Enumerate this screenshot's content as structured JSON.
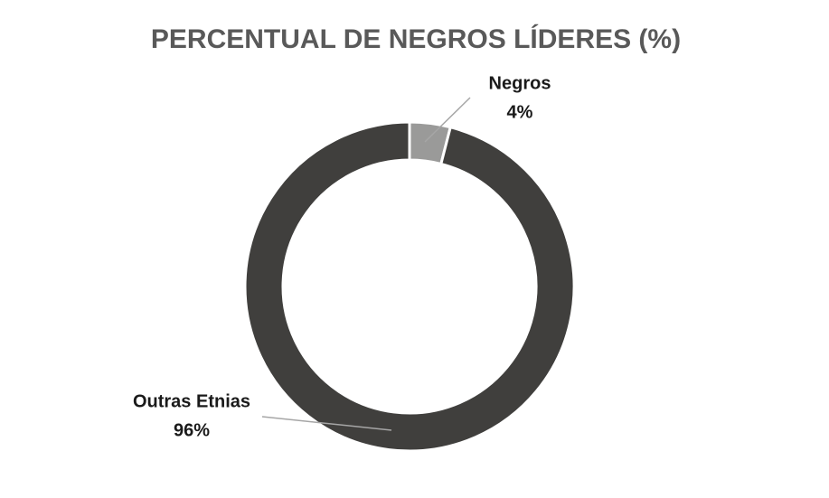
{
  "chart_data": {
    "type": "donut",
    "title": "PERCENTUAL DE NEGROS LÍDERES (%)",
    "categories": [
      "Negros",
      "Outras Etnias"
    ],
    "values": [
      4,
      96
    ],
    "value_labels": [
      "4%",
      "96%"
    ],
    "colors": [
      "#9a9a99",
      "#403f3d"
    ]
  }
}
